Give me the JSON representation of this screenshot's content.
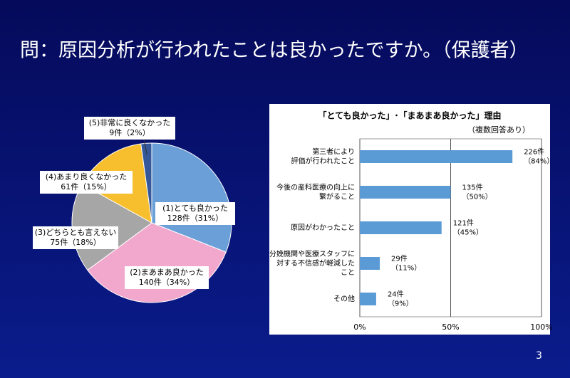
{
  "slide_title": "問：原因分析が行われたことは良かったですか。（保護者）",
  "page_number": "3",
  "chart_data": [
    {
      "type": "pie",
      "categories": [
        "(1)とても良かった",
        "(2)まあまあ良かった",
        "(3)どちらとも言えない",
        "(4)あまり良くなかった",
        "(5)非常に良くなかった"
      ],
      "values": [
        128,
        140,
        75,
        61,
        9
      ],
      "value_labels": [
        "128件（31%）",
        "140件（34%）",
        "75件（18%）",
        "61件（15%）",
        "9件（2%）"
      ],
      "colors": [
        "#6a9fd8",
        "#f2a7cd",
        "#a6a6a6",
        "#f7bf2e",
        "#34589a"
      ]
    },
    {
      "type": "hbar",
      "title": "「とても良かった」･「まあまあ良かった」理由",
      "subtitle": "（複数回答あり）",
      "categories": [
        "第三者により\n評価が行われたこと",
        "今後の産科医療の向上に\n繋がること",
        "原因がわかったこと",
        "分娩機関や医療スタッフに\n対する不信感が軽減した\nこと",
        "その他"
      ],
      "values": [
        84,
        50,
        45,
        11,
        9
      ],
      "value_labels": [
        "226件\n（84%）",
        "135件\n（50%）",
        "121件\n（45%）",
        "29件\n（11%）",
        "24件\n（9%）"
      ],
      "color": "#5b9bd5",
      "xlim": [
        0,
        100
      ],
      "xticks": [
        {
          "value": 0,
          "label": "0%"
        },
        {
          "value": 50,
          "label": "50%"
        },
        {
          "value": 100,
          "label": "100%"
        }
      ],
      "grid": true
    }
  ]
}
